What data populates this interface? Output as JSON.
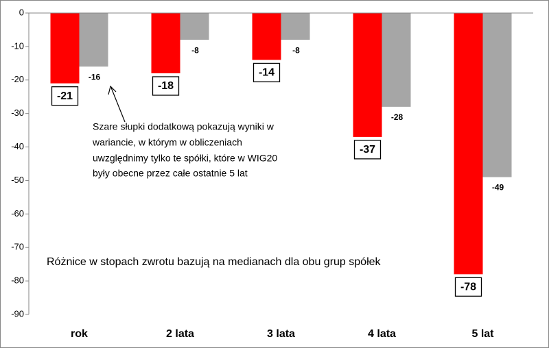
{
  "chart_data": {
    "type": "bar",
    "categories": [
      "rok",
      "2 lata",
      "3 lata",
      "4 lata",
      "5 lat"
    ],
    "series": [
      {
        "color": "#ff0000",
        "values": [
          -21,
          -18,
          -14,
          -37,
          -78
        ]
      },
      {
        "color": "#a6a6a6",
        "values": [
          -16,
          -8,
          -8,
          -28,
          -49
        ]
      }
    ],
    "ylim": [
      -90,
      0
    ],
    "yticks": [
      0,
      -10,
      -20,
      -30,
      -40,
      -50,
      -60,
      -70,
      -80,
      -90
    ],
    "annotations": [
      [
        "Szare słupki dodatkową pokazują wyniki w",
        "wariancie, w którym w obliczeniach",
        "uwzględnimy tylko te spółki, które w WIG20",
        "były obecne przez całe ostatnie 5 lat"
      ],
      "Różnice w stopach zwrotu bazują na medianach dla obu grup spółek"
    ]
  }
}
